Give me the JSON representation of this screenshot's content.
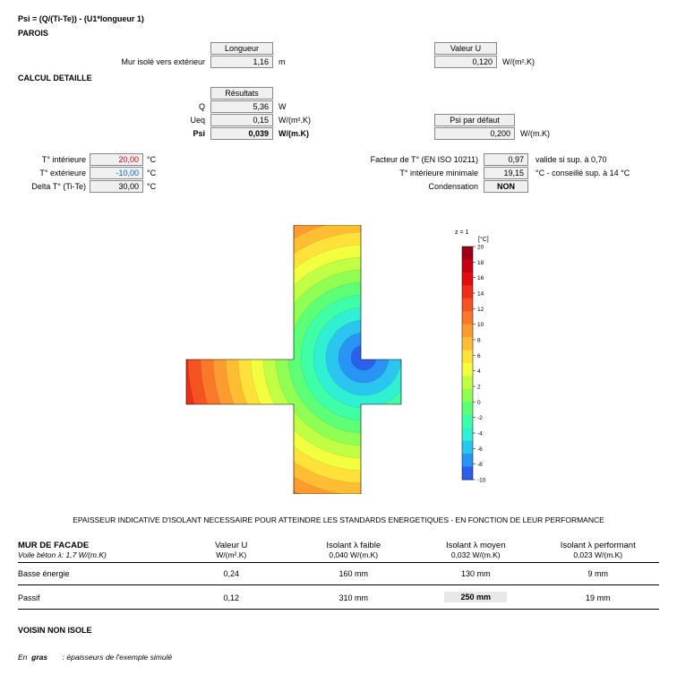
{
  "formula": "Psi = (Q/(Ti-Te)) - (U1*longueur 1)",
  "parois": {
    "title": "PAROIS",
    "label": "Mur isolé vers extérieur",
    "longueur_hdr": "Longueur",
    "longueur_val": "1,16",
    "longueur_unit": "m",
    "valeuru_hdr": "Valeur U",
    "valeuru_val": "0,120",
    "valeuru_unit": "W/(m².K)"
  },
  "calcul": {
    "title": "CALCUL DETAILLE",
    "resultats_hdr": "Résultats",
    "q_lbl": "Q",
    "q_val": "5,36",
    "q_unit": "W",
    "ueq_lbl": "Ueq",
    "ueq_val": "0,15",
    "ueq_unit": "W/(m².K)",
    "psi_lbl": "Psi",
    "psi_val": "0,039",
    "psi_unit": "W/(m.K)",
    "psidef_hdr": "Psi par défaut",
    "psidef_val": "0,200",
    "psidef_unit": "W/(m.K)"
  },
  "temps": {
    "ti_lbl": "T° intérieure",
    "ti_val": "20,00",
    "ti_unit": "°C",
    "te_lbl": "T° extérieure",
    "te_val": "-10,00",
    "te_unit": "°C",
    "dt_lbl": "Delta T° (Ti-Te)",
    "dt_val": "30,00",
    "dt_unit": "°C",
    "ft_lbl": "Facteur de T° (EN ISO 10211)",
    "ft_val": "0,97",
    "ft_note": "valide si sup. à 0,70",
    "tmin_lbl": "T° intérieure minimale",
    "tmin_val": "19,15",
    "tmin_note": "°C - conseillé sup. à 14 °C",
    "cond_lbl": "Condensation",
    "cond_val": "NON"
  },
  "thermal_figure": {
    "type": "thermal-contour",
    "colorbar": {
      "title": "z = 1",
      "unit": "[°C]",
      "min": -10,
      "max": 20,
      "step": 2,
      "colors": [
        "#9e0016",
        "#c60012",
        "#e30d0d",
        "#ef2e17",
        "#f55322",
        "#fa7829",
        "#fd9b2f",
        "#ffbd34",
        "#ffe13a",
        "#f1ff3f",
        "#c1ff45",
        "#8fff53",
        "#5dff76",
        "#3effa6",
        "#30f0d4",
        "#2ac6ef",
        "#2894f4",
        "#2a60ea"
      ]
    }
  },
  "bottom_title": "EPAISSEUR INDICATIVE D'ISOLANT NECESSAIRE POUR ATTEINDRE LES STANDARDS ENERGETIQUES - EN FONCTION DE LEUR PERFORMANCE",
  "insul": {
    "section": "MUR DE FACADE",
    "subtitle": "Voile béton λ: 1,7 W/(m.K)",
    "cols": [
      {
        "h1": "Valeur U",
        "h2": "W/(m².K)"
      },
      {
        "h1": "Isolant λ faible",
        "h2": "0,040 W/(m.K)"
      },
      {
        "h1": "Isolant λ moyen",
        "h2": "0,032 W/(m.K)"
      },
      {
        "h1": "Isolant λ performant",
        "h2": "0,023 W/(m.K)"
      }
    ],
    "rows": [
      {
        "label": "Basse énergie",
        "vals": [
          "0,24",
          "160 mm",
          "130 mm",
          "9 mm"
        ],
        "hl": -1
      },
      {
        "label": "Passif",
        "vals": [
          "0,12",
          "310 mm",
          "250 mm",
          "19 mm"
        ],
        "hl": 2
      }
    ]
  },
  "voisin": "VOISIN NON ISOLE",
  "footnote_prefix": "En",
  "footnote_bold": "gras",
  "footnote_rest": ": épaisseurs de l'exemple simulé"
}
